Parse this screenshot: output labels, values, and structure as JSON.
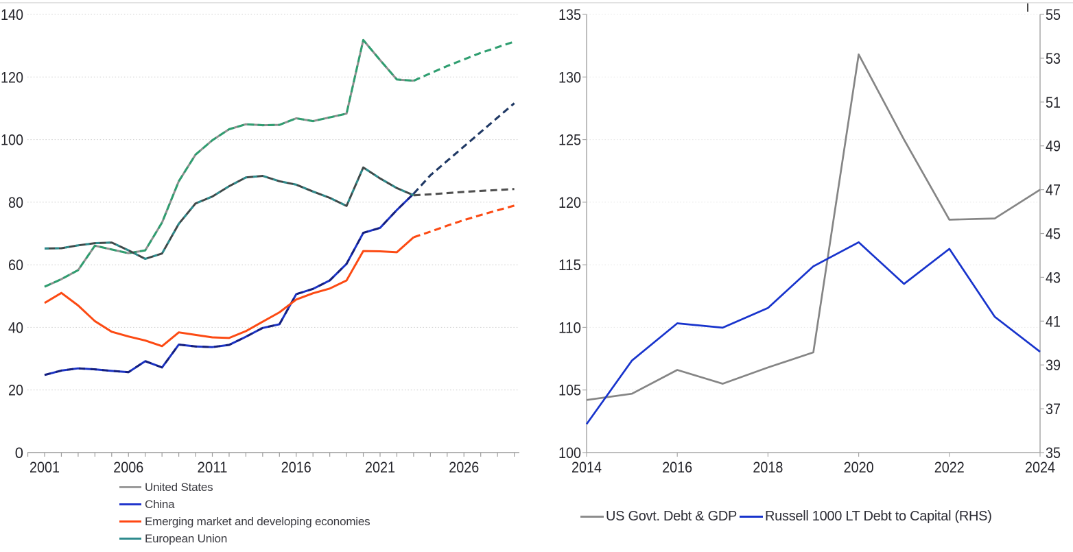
{
  "page": {
    "background": "#ffffff",
    "top_border_color": "#d9d9d9"
  },
  "chart_data": [
    {
      "id": "government-debt-by-region",
      "type": "line",
      "title": "",
      "x_years": [
        2001,
        2002,
        2003,
        2004,
        2005,
        2006,
        2007,
        2008,
        2009,
        2010,
        2011,
        2012,
        2013,
        2014,
        2015,
        2016,
        2017,
        2018,
        2019,
        2020,
        2021,
        2022,
        2023,
        2024,
        2025,
        2026,
        2027,
        2028,
        2029
      ],
      "x_tick_labels": [
        "2001",
        "2006",
        "2011",
        "2016",
        "2021",
        "2026"
      ],
      "x_tick_years": [
        2001,
        2006,
        2011,
        2016,
        2021,
        2026
      ],
      "ylim": [
        0,
        140
      ],
      "y_tick_step": 20,
      "y_tick_labels": [
        "0",
        "20",
        "40",
        "60",
        "80",
        "100",
        "120",
        "140"
      ],
      "grid": "dotted-horizontal",
      "forecast_start_year": 2023,
      "forecast_style": "dashed",
      "legend_position": "bottom-left",
      "series": [
        {
          "name": "United States",
          "legend_color": "#9b9b9b",
          "solid_color": "#8f8f8f",
          "overlay_dash_color": "#2f9e70",
          "overlay_dash": "10 5",
          "forecast_color": "#2f9e70",
          "values": [
            53.0,
            55.4,
            58.3,
            66.1,
            64.9,
            63.7,
            64.6,
            73.5,
            86.7,
            95.2,
            99.8,
            103.3,
            104.9,
            104.6,
            104.7,
            106.8,
            105.9,
            107.1,
            108.3,
            131.8,
            125.4,
            119.2,
            118.8,
            121.2,
            123.5,
            125.6,
            127.7,
            129.5,
            131.3
          ]
        },
        {
          "name": "China",
          "legend_color": "#2135cc",
          "solid_color": "#1b33c4",
          "overlay_dash_color": "#141f7e",
          "overlay_dash": "9 8",
          "forecast_color": "#1f3864",
          "values": [
            24.8,
            26.2,
            26.9,
            26.6,
            26.1,
            25.7,
            29.2,
            27.2,
            34.5,
            33.9,
            33.7,
            34.4,
            37.0,
            39.8,
            41.0,
            50.6,
            52.3,
            55.0,
            60.3,
            70.2,
            71.8,
            77.5,
            82.7,
            88.6,
            93.2,
            97.8,
            102.4,
            107.0,
            111.6
          ]
        },
        {
          "name": "Emerging market and developing economies",
          "legend_color": "#ff4713",
          "solid_color": "#fc4a13",
          "overlay_dash_color": null,
          "overlay_dash": null,
          "forecast_color": "#fc4a13",
          "values": [
            47.8,
            51.0,
            47.0,
            42.0,
            38.6,
            37.1,
            35.8,
            34.0,
            38.4,
            37.6,
            36.8,
            36.6,
            38.8,
            41.8,
            44.8,
            48.9,
            50.9,
            52.4,
            55.0,
            64.4,
            64.3,
            64.0,
            68.8,
            70.6,
            72.5,
            74.3,
            75.9,
            77.4,
            78.9
          ]
        },
        {
          "name": "European Union",
          "legend_color": "#2e8b8d",
          "solid_color": "#3e4949",
          "overlay_dash_color": "#2e8b8c",
          "overlay_dash": "6 9",
          "forecast_color": "#4f4f4f",
          "values": [
            65.2,
            65.3,
            66.2,
            66.9,
            67.1,
            64.6,
            61.9,
            63.6,
            73.1,
            79.6,
            81.8,
            85.1,
            87.9,
            88.4,
            86.7,
            85.6,
            83.4,
            81.4,
            78.8,
            91.1,
            87.6,
            84.5,
            82.2,
            82.5,
            82.9,
            83.3,
            83.6,
            83.9,
            84.2
          ]
        }
      ]
    },
    {
      "id": "us-debt-vs-russell-leverage",
      "type": "line",
      "title": "",
      "x_years": [
        2014,
        2015,
        2016,
        2017,
        2018,
        2019,
        2020,
        2021,
        2022,
        2023,
        2024
      ],
      "x_tick_labels": [
        "2014",
        "2016",
        "2018",
        "2020",
        "2022",
        "2024"
      ],
      "x_tick_years": [
        2014,
        2016,
        2018,
        2020,
        2022,
        2024
      ],
      "y_left": {
        "lim": [
          100,
          135
        ],
        "step": 5,
        "tick_labels": [
          "100",
          "105",
          "110",
          "115",
          "120",
          "125",
          "130",
          "135"
        ]
      },
      "y_right": {
        "lim": [
          35,
          55
        ],
        "step": 2,
        "tick_labels": [
          "35",
          "37",
          "39",
          "41",
          "43",
          "45",
          "47",
          "49",
          "51",
          "53",
          "55"
        ]
      },
      "grid": "dotted-horizontal-faint",
      "legend_position": "bottom-center",
      "series": [
        {
          "name": "US Govt. Debt & GDP",
          "axis": "left",
          "legend_color": "#8c8c8c",
          "solid_color": "#858585",
          "values": [
            104.2,
            104.7,
            106.6,
            105.5,
            106.8,
            108.0,
            131.8,
            125.0,
            118.6,
            118.7,
            121.0
          ]
        },
        {
          "name": "Russell 1000 LT Debt to Capital (RHS)",
          "axis": "right",
          "legend_color": "#1733cc",
          "solid_color": "#1733cc",
          "values": [
            36.3,
            39.2,
            40.9,
            40.7,
            41.6,
            43.5,
            44.6,
            42.7,
            44.3,
            41.2,
            39.6
          ]
        }
      ]
    }
  ]
}
